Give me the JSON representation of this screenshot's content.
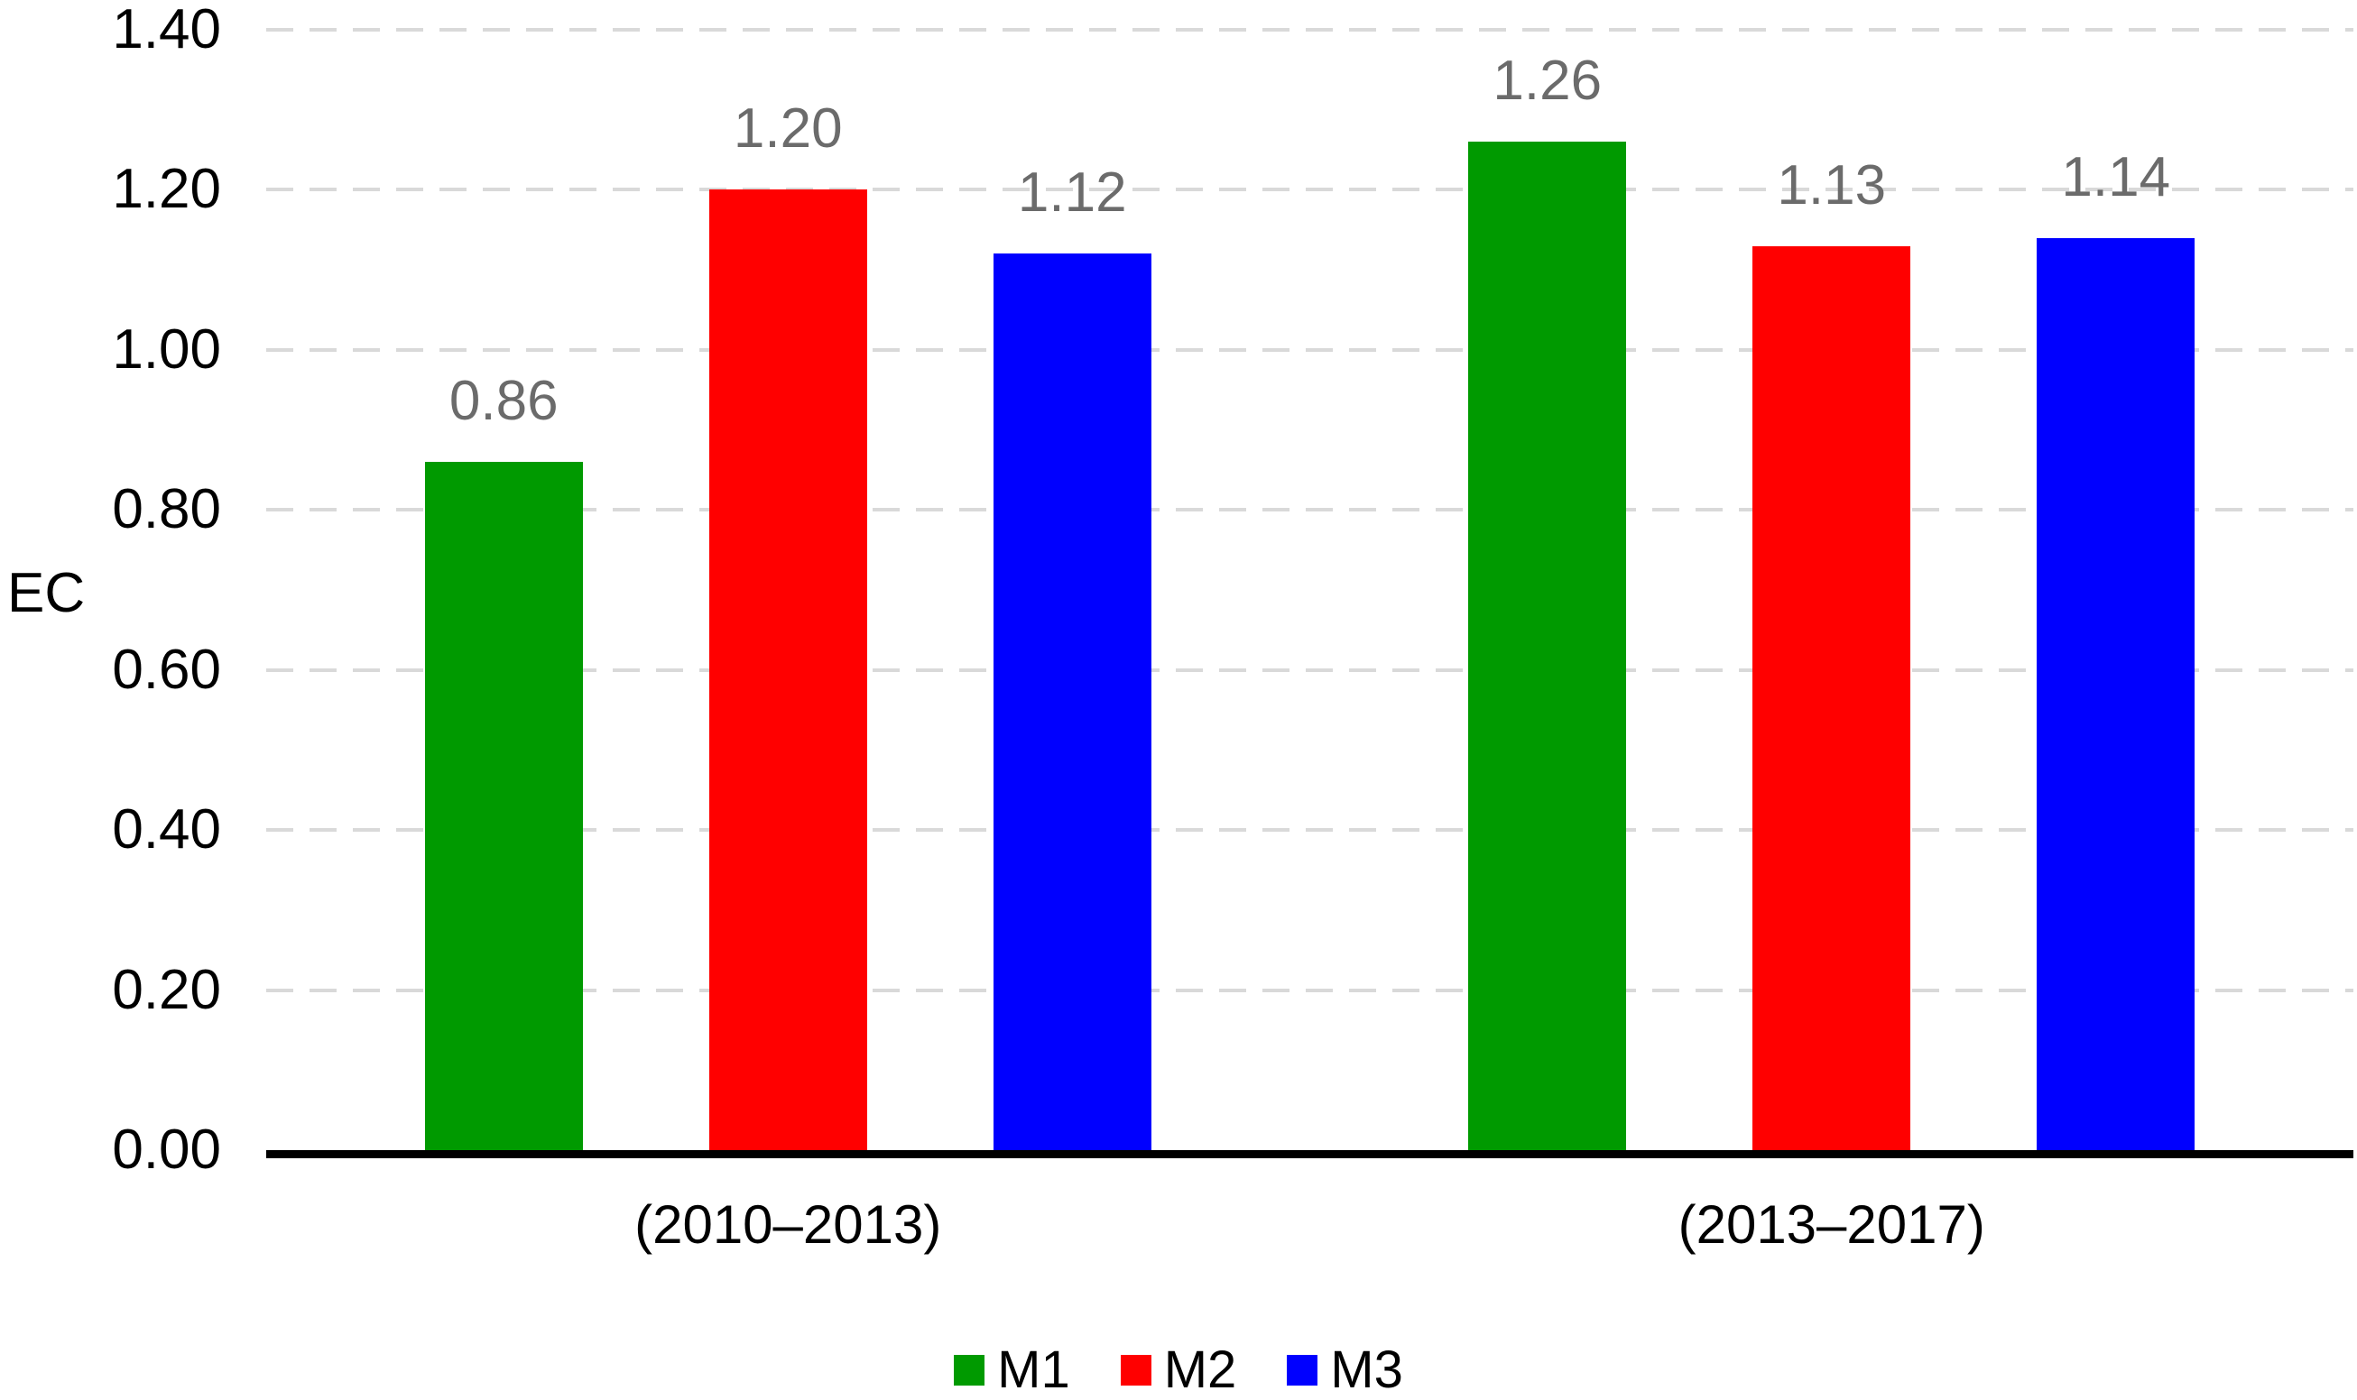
{
  "chart_data": {
    "type": "bar",
    "title": "",
    "xlabel": "",
    "ylabel": "EC",
    "categories": [
      "(2010–2013)",
      "(2013–2017)"
    ],
    "series": [
      {
        "name": "M1",
        "color": "#009A00",
        "values": [
          0.86,
          1.26
        ]
      },
      {
        "name": "M2",
        "color": "#FF0000",
        "values": [
          1.2,
          1.13
        ]
      },
      {
        "name": "M3",
        "color": "#0000FF",
        "values": [
          1.12,
          1.14
        ]
      }
    ],
    "data_labels": [
      [
        "0.86",
        "1.26"
      ],
      [
        "1.20",
        "1.13"
      ],
      [
        "1.12",
        "1.14"
      ]
    ],
    "ylim": [
      0,
      1.4
    ],
    "yticks": [
      "0.00",
      "0.20",
      "0.40",
      "0.60",
      "0.80",
      "1.00",
      "1.20",
      "1.40"
    ],
    "grid": "horizontal-dashed",
    "legend_position": "bottom",
    "colors": {
      "gridline": "#D9D9D9",
      "axis_line": "#000000",
      "data_label_text": "#6B6B6B",
      "tick_label_text": "#000000"
    }
  }
}
